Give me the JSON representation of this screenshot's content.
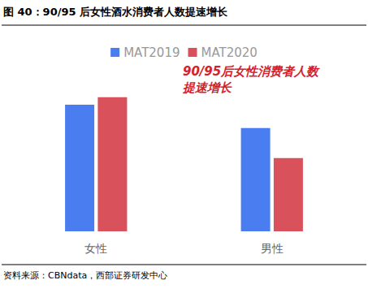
{
  "chart_data": {
    "type": "bar",
    "title": "图 40：90/95 后女性酒水消费者人数提速增长",
    "source": "资料来源：CBNdata，西部证券研发中心",
    "annotation": "90/95后女性消费者人数\n提速增长",
    "categories": [
      "女性",
      "男性"
    ],
    "series": [
      {
        "name": "MAT2019",
        "color": "#4a7ef0",
        "values": [
          135,
          110
        ]
      },
      {
        "name": "MAT2020",
        "color": "#d9515a",
        "values": [
          143,
          78
        ]
      }
    ],
    "ylim": [
      0,
      160
    ],
    "yticks": [
      0,
      40,
      80,
      120,
      160
    ],
    "grid": false,
    "legend": "top",
    "tick_labels": "x"
  }
}
